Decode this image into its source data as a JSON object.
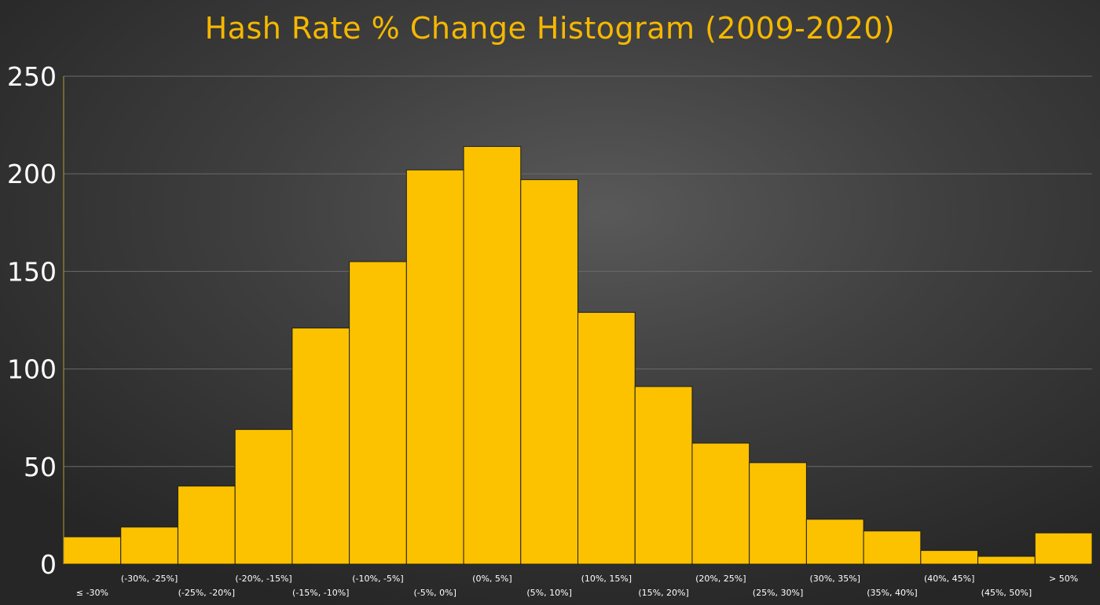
{
  "chart_data": {
    "type": "bar",
    "title": "Hash Rate % Change Histogram (2009-2020)",
    "xlabel": "",
    "ylabel": "",
    "ylim": [
      0,
      250
    ],
    "yticks": [
      0,
      50,
      100,
      150,
      200,
      250
    ],
    "grid": true,
    "categories": [
      "≤ -30%",
      "(-30%, -25%]",
      "(-25%, -20%]",
      "(-20%, -15%]",
      "(-15%, -10%]",
      "(-10%, -5%]",
      "(-5%, 0%]",
      "(0%, 5%]",
      "(5%, 10%]",
      "(10%, 15%]",
      "(15%, 20%]",
      "(20%, 25%]",
      "(25%, 30%]",
      "(30%, 35%]",
      "(35%, 40%]",
      "(40%, 45%]",
      "(45%, 50%]",
      "> 50%"
    ],
    "values": [
      14,
      19,
      40,
      69,
      121,
      155,
      202,
      214,
      197,
      129,
      91,
      62,
      52,
      23,
      17,
      7,
      4,
      16
    ],
    "colors": {
      "bar": "#fcc200",
      "title": "#f5b800",
      "tick_text": "#ffffff",
      "grid": "#6a6a6a"
    }
  }
}
